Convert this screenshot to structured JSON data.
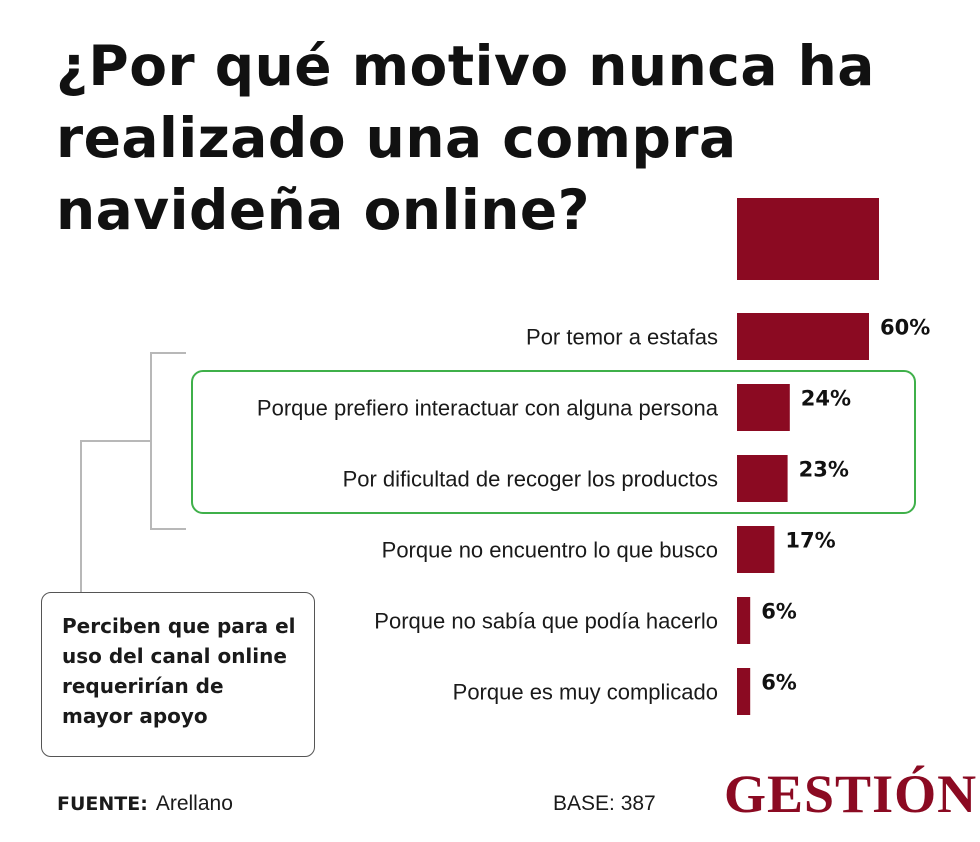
{
  "title": "¿Por qué motivo nunca ha realizado una compra navideña online?",
  "chart_data": {
    "type": "bar",
    "orientation": "horizontal",
    "categories": [
      "Por temor a estafas",
      "Porque prefiero interactuar con alguna persona",
      "Por dificultad de recoger los productos",
      "Porque no encuentro lo que busco",
      "Porque no sabía que podía hacerlo",
      "Porque es muy complicado"
    ],
    "values": [
      60,
      24,
      23,
      17,
      6,
      6
    ],
    "data_labels": [
      "60%",
      "24%",
      "23%",
      "17%",
      "6%",
      "6%"
    ],
    "unit": "%",
    "highlighted_categories": [
      1,
      2
    ],
    "bar_color": "#8b0a22",
    "highlight_color": "#3fb04a"
  },
  "annotation": "Perciben que para el uso del canal online requerirían de mayor apoyo",
  "footer": {
    "source_label": "FUENTE:",
    "source_value": "Arellano",
    "base": "BASE: 387"
  },
  "logo": "GESTIÓN"
}
